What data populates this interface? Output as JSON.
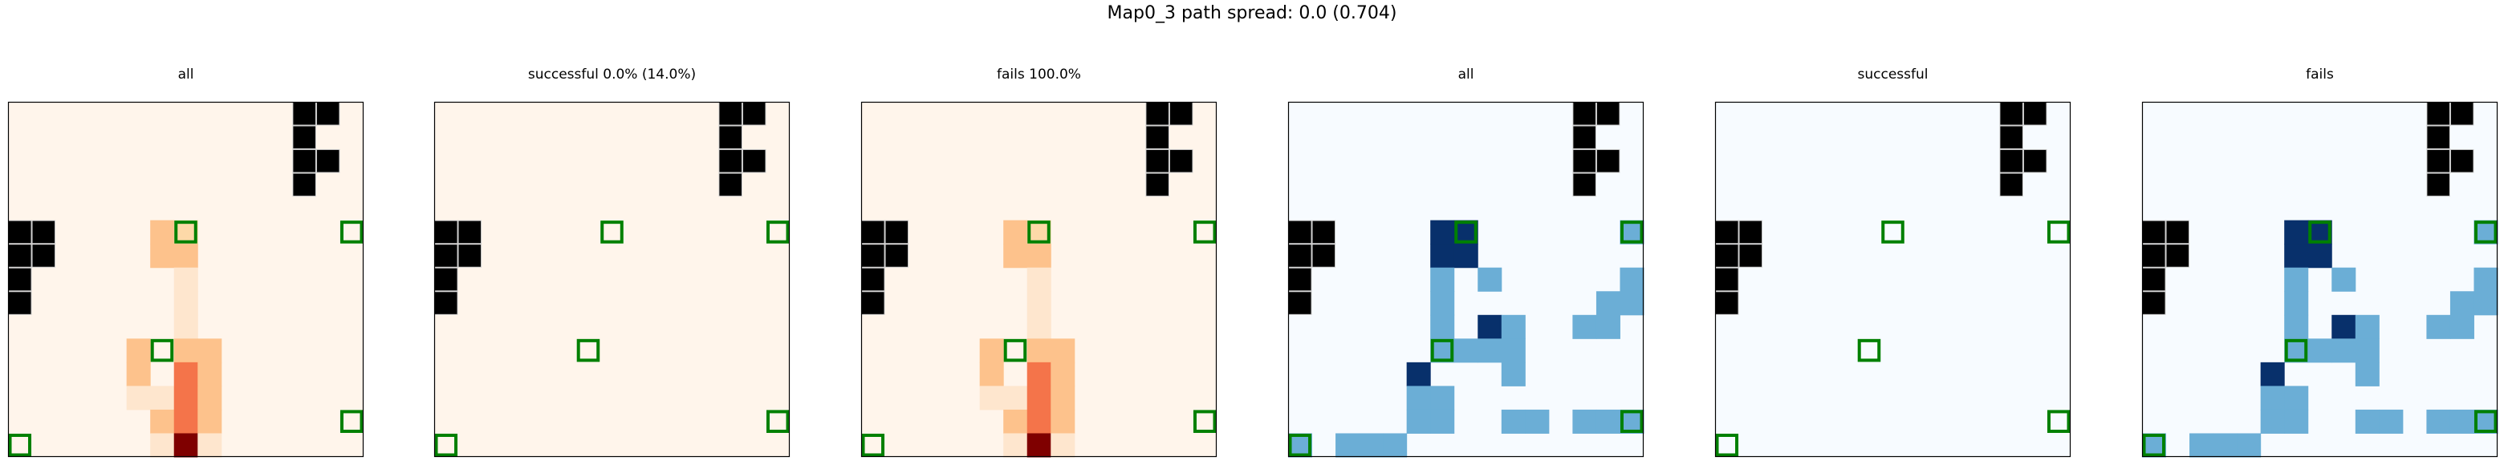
{
  "title": "Map0_3 path spread: 0.0 (0.704)",
  "colors": {
    "wall": "#000000",
    "goal_outline": "#008000",
    "frame": "#000000",
    "oranges": [
      "#fff5eb",
      "#fee6ce",
      "#fdd9a8",
      "#fdc28c",
      "#f4744a",
      "#7f0000"
    ],
    "blues": [
      "#f7fbff",
      "#6baed6",
      "#08306b"
    ]
  },
  "chart_data": {
    "type": "heatmap",
    "grid_size": [
      15,
      15
    ],
    "walls": [
      [
        0,
        12
      ],
      [
        0,
        13
      ],
      [
        1,
        12
      ],
      [
        2,
        12
      ],
      [
        2,
        13
      ],
      [
        3,
        12
      ],
      [
        5,
        0
      ],
      [
        5,
        1
      ],
      [
        6,
        0
      ],
      [
        6,
        1
      ],
      [
        7,
        0
      ],
      [
        8,
        0
      ]
    ],
    "goals": [
      [
        5,
        7
      ],
      [
        5,
        14
      ],
      [
        10,
        6
      ],
      [
        13,
        14
      ],
      [
        14,
        0
      ]
    ],
    "panels": [
      {
        "title": "all",
        "cmap": "oranges",
        "cells": [
          [
            5,
            6,
            3
          ],
          [
            5,
            7,
            2
          ],
          [
            6,
            6,
            3
          ],
          [
            6,
            7,
            3
          ],
          [
            7,
            7,
            1
          ],
          [
            8,
            7,
            1
          ],
          [
            9,
            7,
            1
          ],
          [
            10,
            5,
            3
          ],
          [
            10,
            7,
            3
          ],
          [
            10,
            8,
            3
          ],
          [
            11,
            5,
            3
          ],
          [
            11,
            7,
            4
          ],
          [
            11,
            8,
            3
          ],
          [
            12,
            5,
            1
          ],
          [
            12,
            6,
            1
          ],
          [
            12,
            7,
            4
          ],
          [
            12,
            8,
            3
          ],
          [
            13,
            6,
            3
          ],
          [
            13,
            7,
            4
          ],
          [
            13,
            8,
            3
          ],
          [
            14,
            6,
            1
          ],
          [
            14,
            7,
            5
          ],
          [
            14,
            8,
            1
          ]
        ]
      },
      {
        "title": "successful 0.0% (14.0%)",
        "cmap": "oranges",
        "cells": []
      },
      {
        "title": "fails 100.0%",
        "cmap": "oranges",
        "cells": [
          [
            5,
            6,
            3
          ],
          [
            5,
            7,
            2
          ],
          [
            6,
            6,
            3
          ],
          [
            6,
            7,
            3
          ],
          [
            7,
            7,
            1
          ],
          [
            8,
            7,
            1
          ],
          [
            9,
            7,
            1
          ],
          [
            10,
            5,
            3
          ],
          [
            10,
            7,
            3
          ],
          [
            10,
            8,
            3
          ],
          [
            11,
            5,
            3
          ],
          [
            11,
            7,
            4
          ],
          [
            11,
            8,
            3
          ],
          [
            12,
            5,
            1
          ],
          [
            12,
            6,
            1
          ],
          [
            12,
            7,
            4
          ],
          [
            12,
            8,
            3
          ],
          [
            13,
            6,
            3
          ],
          [
            13,
            7,
            4
          ],
          [
            13,
            8,
            3
          ],
          [
            14,
            6,
            1
          ],
          [
            14,
            7,
            5
          ],
          [
            14,
            8,
            1
          ]
        ]
      },
      {
        "title": "all",
        "cmap": "blues",
        "cells": [
          [
            5,
            6,
            2
          ],
          [
            5,
            7,
            2
          ],
          [
            6,
            6,
            2
          ],
          [
            6,
            7,
            2
          ],
          [
            5,
            14,
            1
          ],
          [
            7,
            6,
            1
          ],
          [
            7,
            8,
            1
          ],
          [
            7,
            14,
            1
          ],
          [
            8,
            6,
            1
          ],
          [
            8,
            13,
            1
          ],
          [
            8,
            14,
            1
          ],
          [
            9,
            6,
            1
          ],
          [
            9,
            8,
            2
          ],
          [
            9,
            9,
            1
          ],
          [
            9,
            12,
            1
          ],
          [
            9,
            13,
            1
          ],
          [
            10,
            6,
            1
          ],
          [
            10,
            7,
            1
          ],
          [
            10,
            8,
            1
          ],
          [
            10,
            9,
            1
          ],
          [
            11,
            5,
            2
          ],
          [
            11,
            9,
            1
          ],
          [
            12,
            5,
            1
          ],
          [
            12,
            6,
            1
          ],
          [
            13,
            5,
            1
          ],
          [
            13,
            6,
            1
          ],
          [
            13,
            9,
            1
          ],
          [
            13,
            10,
            1
          ],
          [
            13,
            12,
            1
          ],
          [
            13,
            13,
            1
          ],
          [
            13,
            14,
            1
          ],
          [
            14,
            0,
            1
          ],
          [
            14,
            2,
            1
          ],
          [
            14,
            3,
            1
          ],
          [
            14,
            4,
            1
          ]
        ]
      },
      {
        "title": "successful",
        "cmap": "blues",
        "cells": []
      },
      {
        "title": "fails",
        "cmap": "blues",
        "cells": [
          [
            5,
            6,
            2
          ],
          [
            5,
            7,
            2
          ],
          [
            6,
            6,
            2
          ],
          [
            6,
            7,
            2
          ],
          [
            5,
            14,
            1
          ],
          [
            7,
            6,
            1
          ],
          [
            7,
            8,
            1
          ],
          [
            7,
            14,
            1
          ],
          [
            8,
            6,
            1
          ],
          [
            8,
            13,
            1
          ],
          [
            8,
            14,
            1
          ],
          [
            9,
            6,
            1
          ],
          [
            9,
            8,
            2
          ],
          [
            9,
            9,
            1
          ],
          [
            9,
            12,
            1
          ],
          [
            9,
            13,
            1
          ],
          [
            10,
            6,
            1
          ],
          [
            10,
            7,
            1
          ],
          [
            10,
            8,
            1
          ],
          [
            10,
            9,
            1
          ],
          [
            11,
            5,
            2
          ],
          [
            11,
            9,
            1
          ],
          [
            12,
            5,
            1
          ],
          [
            12,
            6,
            1
          ],
          [
            13,
            5,
            1
          ],
          [
            13,
            6,
            1
          ],
          [
            13,
            9,
            1
          ],
          [
            13,
            10,
            1
          ],
          [
            13,
            12,
            1
          ],
          [
            13,
            13,
            1
          ],
          [
            13,
            14,
            1
          ],
          [
            14,
            0,
            1
          ],
          [
            14,
            2,
            1
          ],
          [
            14,
            3,
            1
          ],
          [
            14,
            4,
            1
          ]
        ]
      }
    ]
  }
}
